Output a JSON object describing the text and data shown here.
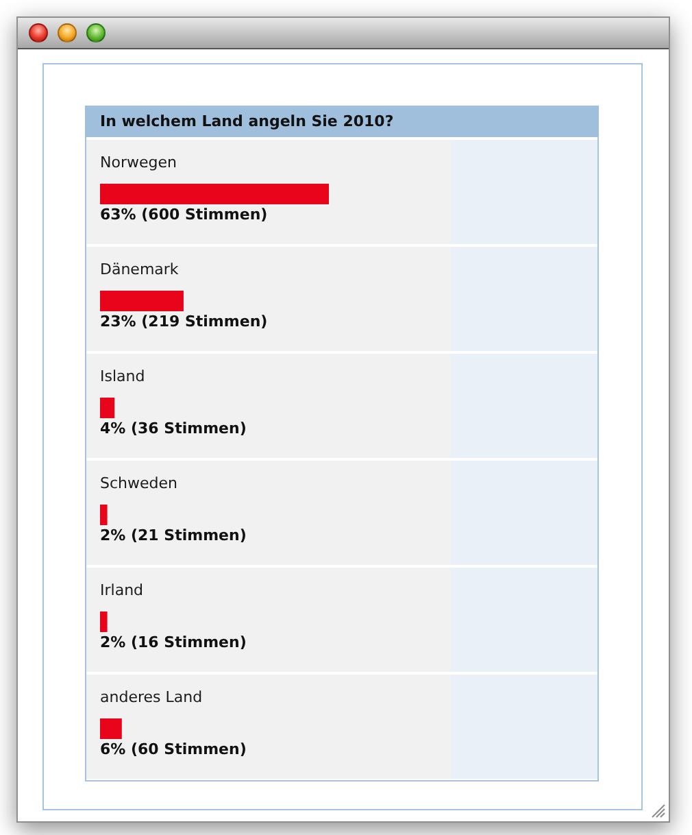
{
  "chart_data": {
    "type": "bar",
    "orientation": "horizontal",
    "title": "In welchem Land angeln Sie 2010?",
    "categories": [
      "Norwegen",
      "Dänemark",
      "Island",
      "Schweden",
      "Irland",
      "anderes Land"
    ],
    "values": [
      63,
      23,
      4,
      2,
      2,
      6
    ],
    "value_labels": [
      "63% (600 Stimmen)",
      "23% (219 Stimmen)",
      "4% (36 Stimmen)",
      "2% (21 Stimmen)",
      "2% (16 Stimmen)",
      "6% (60 Stimmen)"
    ],
    "color": "#e8051c",
    "tick_labels": "y"
  }
}
